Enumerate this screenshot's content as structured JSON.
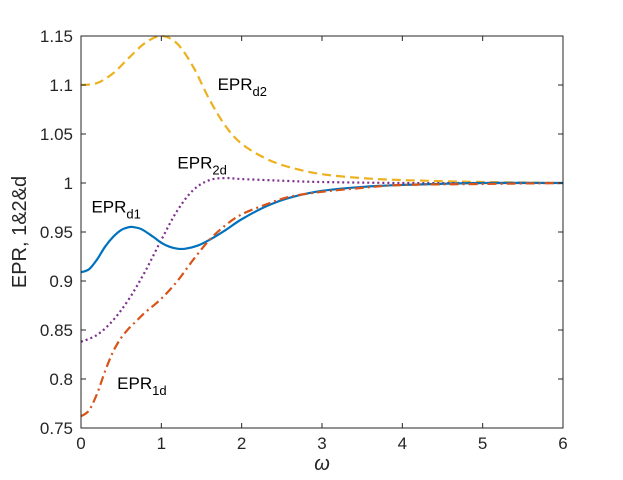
{
  "chart_data": {
    "type": "line",
    "xlabel": "ω",
    "ylabel": "EPR, 1&2&d",
    "xlim": [
      0,
      6
    ],
    "ylim": [
      0.75,
      1.15
    ],
    "xticks": [
      0,
      1,
      2,
      3,
      4,
      5,
      6
    ],
    "yticks": [
      0.75,
      0.8,
      0.85,
      0.9,
      0.95,
      1,
      1.05,
      1.1,
      1.15
    ],
    "ytick_labels": [
      "0.75",
      "0.8",
      "0.85",
      "0.9",
      "0.95",
      "1",
      "1.05",
      "1.1",
      "1.15"
    ],
    "box": true,
    "grid": false,
    "series": [
      {
        "label_main": "EPR",
        "label_sub": "d2",
        "color": "#EDB120",
        "style": "dashed",
        "x": [
          0,
          0.2,
          0.4,
          0.6,
          0.8,
          1.0,
          1.2,
          1.4,
          1.6,
          1.8,
          2.0,
          2.3,
          2.6,
          3.0,
          3.5,
          4.0,
          5.0,
          6.0
        ],
        "y": [
          1.1,
          1.102,
          1.112,
          1.128,
          1.143,
          1.15,
          1.142,
          1.118,
          1.085,
          1.058,
          1.04,
          1.025,
          1.016,
          1.009,
          1.005,
          1.003,
          1.001,
          1.0
        ]
      },
      {
        "label_main": "EPR",
        "label_sub": "2d",
        "color": "#7E2F8E",
        "style": "dotted",
        "x": [
          0,
          0.2,
          0.4,
          0.6,
          0.8,
          1.0,
          1.2,
          1.4,
          1.6,
          1.8,
          2.0,
          2.3,
          2.6,
          3.0,
          4.0,
          5.0,
          6.0
        ],
        "y": [
          0.838,
          0.845,
          0.86,
          0.882,
          0.91,
          0.942,
          0.972,
          0.993,
          1.003,
          1.005,
          1.004,
          1.003,
          1.002,
          1.001,
          1.0,
          1.0,
          1.0
        ]
      },
      {
        "label_main": "EPR",
        "label_sub": "d1",
        "color": "#0072BD",
        "style": "solid",
        "x": [
          0,
          0.1,
          0.2,
          0.3,
          0.4,
          0.5,
          0.6,
          0.65,
          0.75,
          0.9,
          1.0,
          1.1,
          1.2,
          1.3,
          1.45,
          1.6,
          1.8,
          2.0,
          2.3,
          2.6,
          3.0,
          3.5,
          4.0,
          5.0,
          6.0
        ],
        "y": [
          0.909,
          0.912,
          0.922,
          0.935,
          0.945,
          0.952,
          0.955,
          0.955,
          0.953,
          0.945,
          0.939,
          0.935,
          0.933,
          0.933,
          0.936,
          0.942,
          0.952,
          0.963,
          0.976,
          0.985,
          0.992,
          0.996,
          0.998,
          1.0,
          1.0
        ]
      },
      {
        "label_main": "EPR",
        "label_sub": "1d",
        "color": "#D95319",
        "style": "dashdot",
        "x": [
          0,
          0.1,
          0.2,
          0.3,
          0.4,
          0.5,
          0.6,
          0.7,
          0.8,
          1.0,
          1.2,
          1.4,
          1.6,
          1.8,
          2.0,
          2.3,
          2.6,
          3.0,
          3.5,
          4.0,
          5.0,
          6.0
        ],
        "y": [
          0.762,
          0.768,
          0.785,
          0.808,
          0.828,
          0.842,
          0.852,
          0.86,
          0.868,
          0.882,
          0.9,
          0.922,
          0.942,
          0.957,
          0.968,
          0.978,
          0.986,
          0.991,
          0.995,
          0.998,
          0.999,
          1.0
        ]
      }
    ],
    "annotations": [
      {
        "main": "EPR",
        "sub": "d2",
        "x": 1.7,
        "y": 1.095
      },
      {
        "main": "EPR",
        "sub": "2d",
        "x": 1.2,
        "y": 1.015
      },
      {
        "main": "EPR",
        "sub": "d1",
        "x": 0.13,
        "y": 0.97
      },
      {
        "main": "EPR",
        "sub": "1d",
        "x": 0.45,
        "y": 0.79
      }
    ]
  }
}
